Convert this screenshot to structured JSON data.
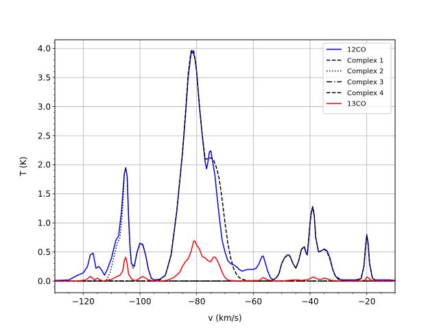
{
  "chart_data": {
    "type": "line",
    "title": "",
    "xlabel": "v (km/s)",
    "ylabel": "T (K)",
    "xlim": [
      -130,
      -10
    ],
    "ylim": [
      -0.2,
      4.15
    ],
    "xticks": [
      -120,
      -100,
      -80,
      -60,
      -40,
      -20
    ],
    "xtick_labels": [
      "−120",
      "−100",
      "−80",
      "−60",
      "−40",
      "−20"
    ],
    "yticks": [
      0.0,
      0.5,
      1.0,
      1.5,
      2.0,
      2.5,
      3.0,
      3.5,
      4.0
    ],
    "ytick_labels": [
      "0.0",
      "0.5",
      "1.0",
      "1.5",
      "2.0",
      "2.5",
      "3.0",
      "3.5",
      "4.0"
    ],
    "grid": true,
    "legend_position": "top-right",
    "series": [
      {
        "name": "12CO",
        "color": "#0000ff",
        "dash": "solid",
        "x": [
          -130,
          -125,
          -122,
          -120,
          -118.5,
          -117.5,
          -116.5,
          -115.5,
          -114.5,
          -113.5,
          -112.5,
          -111.5,
          -110,
          -108.5,
          -107.5,
          -106.5,
          -105.5,
          -105,
          -104.5,
          -104,
          -103.5,
          -103,
          -102,
          -101,
          -100,
          -99,
          -98,
          -97,
          -96,
          -95,
          -93,
          -91,
          -89,
          -87,
          -85,
          -84,
          -83,
          -82,
          -81.5,
          -81,
          -80.5,
          -80,
          -79,
          -78,
          -77,
          -76.5,
          -76,
          -75.5,
          -75,
          -74.5,
          -74,
          -73.5,
          -73,
          -72,
          -71,
          -70,
          -69,
          -68,
          -67,
          -66,
          -65,
          -64,
          -62,
          -60,
          -59,
          -58,
          -57,
          -56.5,
          -56,
          -55,
          -54,
          -53,
          -52,
          -51,
          -50,
          -49,
          -48,
          -47.5,
          -47,
          -46,
          -45,
          -44,
          -43,
          -42,
          -41.5,
          -41,
          -40.5,
          -40,
          -39.5,
          -39,
          -38.5,
          -38,
          -37,
          -36,
          -35,
          -34,
          -33,
          -32,
          -31,
          -30,
          -29,
          -28,
          -26,
          -24,
          -22,
          -21,
          -20.5,
          -20,
          -19.5,
          -19,
          -18,
          -17,
          -16,
          -14,
          -12,
          -10
        ],
        "y": [
          0.01,
          0.02,
          0.1,
          0.14,
          0.25,
          0.45,
          0.48,
          0.22,
          0.25,
          0.19,
          0.1,
          0.2,
          0.4,
          0.7,
          0.78,
          1.2,
          1.85,
          1.95,
          1.8,
          1.1,
          0.6,
          0.3,
          0.25,
          0.5,
          0.65,
          0.63,
          0.45,
          0.2,
          0.05,
          0.02,
          0.03,
          0.1,
          0.45,
          1.2,
          2.2,
          2.8,
          3.5,
          3.9,
          3.95,
          3.9,
          3.8,
          3.6,
          3.0,
          2.5,
          2.05,
          1.93,
          2.05,
          2.22,
          2.24,
          2.1,
          1.95,
          1.8,
          1.55,
          1.1,
          0.7,
          0.5,
          0.35,
          0.3,
          0.28,
          0.25,
          0.2,
          0.17,
          0.2,
          0.2,
          0.22,
          0.3,
          0.42,
          0.43,
          0.35,
          0.18,
          0.06,
          0.02,
          0.05,
          0.12,
          0.3,
          0.4,
          0.45,
          0.45,
          0.42,
          0.3,
          0.22,
          0.35,
          0.55,
          0.59,
          0.5,
          0.45,
          0.7,
          1.0,
          1.2,
          1.25,
          1.12,
          0.75,
          0.5,
          0.52,
          0.55,
          0.52,
          0.4,
          0.2,
          0.08,
          0.05,
          0.02,
          0.02,
          0.02,
          0.02,
          0.04,
          0.25,
          0.55,
          0.8,
          0.65,
          0.3,
          0.05,
          0.02,
          0.02,
          0.02,
          0.02,
          0.01
        ]
      },
      {
        "name": "Complex 1",
        "color": "#000000",
        "dash": "dashed",
        "x": [
          -130,
          -95,
          -93,
          -91,
          -89,
          -87,
          -85,
          -84,
          -83,
          -82,
          -81.5,
          -81,
          -80.5,
          -80,
          -79,
          -78,
          -77,
          -76,
          -75,
          -74,
          -73,
          -72,
          -71,
          -70,
          -69,
          -68,
          -67,
          -66,
          -65,
          -64,
          -62,
          -60,
          -10
        ],
        "y": [
          0,
          0,
          0.02,
          0.1,
          0.45,
          1.2,
          2.2,
          2.85,
          3.55,
          3.95,
          3.98,
          3.95,
          3.8,
          3.6,
          3.0,
          2.5,
          2.1,
          2.1,
          2.12,
          2.08,
          1.95,
          1.75,
          1.4,
          1.0,
          0.65,
          0.4,
          0.22,
          0.12,
          0.06,
          0.03,
          0.01,
          0,
          0
        ]
      },
      {
        "name": "Complex 2",
        "color": "#000000",
        "dash": "dotted",
        "x": [
          -130,
          -112,
          -110.5,
          -109,
          -108,
          -107,
          -106,
          -105.5,
          -105,
          -104.5,
          -104,
          -103.5,
          -103,
          -102.5,
          -102,
          -101,
          -100,
          -99,
          -98,
          -97,
          -96,
          -95,
          -93,
          -10
        ],
        "y": [
          0,
          0,
          0.15,
          0.45,
          0.65,
          0.75,
          1.3,
          1.85,
          1.93,
          1.8,
          1.1,
          0.55,
          0.3,
          0.22,
          0.25,
          0.5,
          0.64,
          0.62,
          0.45,
          0.2,
          0.05,
          0.01,
          0,
          0
        ]
      },
      {
        "name": "Complex 3",
        "color": "#000000",
        "dash": "dashdot",
        "x": [
          -130,
          -10
        ],
        "y": [
          0,
          0
        ]
      },
      {
        "name": "Complex 4",
        "color": "#000000",
        "dash": "dashed",
        "x": [
          -130,
          -54,
          -52,
          -51,
          -50,
          -49,
          -48,
          -47.5,
          -47,
          -46,
          -45,
          -44,
          -43,
          -42,
          -41.5,
          -41,
          -40.5,
          -40,
          -39.5,
          -39,
          -38.5,
          -38,
          -37,
          -36,
          -35,
          -34,
          -33,
          -32,
          -31,
          -30,
          -28,
          -24,
          -22,
          -21,
          -20.5,
          -20,
          -19.5,
          -19,
          -18,
          -17,
          -10
        ],
        "y": [
          0,
          0,
          0.05,
          0.12,
          0.3,
          0.4,
          0.44,
          0.44,
          0.42,
          0.3,
          0.22,
          0.35,
          0.55,
          0.58,
          0.5,
          0.45,
          0.7,
          1.0,
          1.22,
          1.28,
          1.12,
          0.75,
          0.5,
          0.52,
          0.55,
          0.5,
          0.38,
          0.2,
          0.08,
          0.03,
          0.01,
          0,
          0.04,
          0.25,
          0.55,
          0.78,
          0.63,
          0.3,
          0.05,
          0,
          0
        ]
      },
      {
        "name": "13CO",
        "color": "#ff0000",
        "dash": "solid",
        "x": [
          -130,
          -122,
          -119,
          -117.5,
          -116,
          -115,
          -114,
          -113,
          -112,
          -110,
          -108,
          -107,
          -106,
          -105.5,
          -105,
          -104.5,
          -104,
          -103,
          -102,
          -101,
          -100,
          -99,
          -98,
          -97,
          -95,
          -92,
          -90,
          -88,
          -86,
          -85,
          -84,
          -83,
          -82,
          -81.5,
          -81,
          -80.5,
          -80,
          -79,
          -78,
          -77,
          -76,
          -75,
          -74.5,
          -74,
          -73.5,
          -73,
          -72,
          -71,
          -70,
          -69,
          -68,
          -66,
          -64,
          -62,
          -60,
          -58,
          -56.5,
          -55,
          -52,
          -50,
          -48,
          -46,
          -44,
          -43,
          -42,
          -41,
          -40,
          -39,
          -38,
          -37,
          -36,
          -35,
          -34,
          -33,
          -32,
          -30,
          -28,
          -26,
          -22,
          -20.5,
          -20,
          -19.5,
          -19,
          -18,
          -16,
          -12,
          -10
        ],
        "y": [
          0,
          0,
          0.02,
          0.08,
          0.02,
          0.05,
          0.02,
          0.0,
          0.01,
          0.03,
          0.08,
          0.1,
          0.18,
          0.35,
          0.41,
          0.3,
          0.12,
          0.04,
          0.01,
          0.02,
          0.05,
          0.08,
          0.05,
          0.02,
          0.0,
          0.0,
          0.02,
          0.06,
          0.15,
          0.25,
          0.33,
          0.38,
          0.5,
          0.6,
          0.69,
          0.68,
          0.62,
          0.55,
          0.42,
          0.4,
          0.35,
          0.33,
          0.38,
          0.41,
          0.41,
          0.38,
          0.28,
          0.15,
          0.06,
          0.02,
          0.01,
          0.0,
          0.0,
          0.0,
          0.01,
          0.01,
          0.06,
          0.02,
          0.0,
          0.0,
          0.01,
          0.02,
          0.02,
          0.01,
          0.02,
          0.02,
          0.04,
          0.07,
          0.05,
          0.03,
          0.03,
          0.05,
          0.04,
          0.02,
          0.01,
          0.0,
          0.0,
          0.0,
          0.0,
          0.02,
          0.07,
          0.06,
          0.03,
          0.01,
          0.0,
          0.0,
          0.0
        ]
      }
    ]
  }
}
